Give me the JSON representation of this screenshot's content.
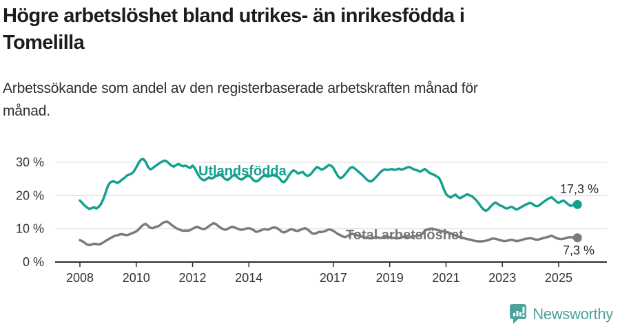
{
  "header": {
    "title_line1": "Högre arbetslöshet bland utrikes- än inrikesfödda i",
    "title_line2": "Tomelilla",
    "subtitle_line1": "Arbetssökande som andel av den registerbaserade arbetskraften månad för",
    "subtitle_line2": "månad."
  },
  "footer": {
    "brand": "Newsworthy",
    "logo_icon": "newsworthy-speech-bubble-barchart-icon"
  },
  "colors": {
    "foreign_born_line": "#14A090",
    "total_line": "#7b7b7b",
    "total_label": "#777777",
    "grid": "#dcdcdc",
    "axis": "#2b2b2b",
    "tick_text": "#333333",
    "value_text": "#2b2b2b",
    "brand_teal": "#4BA29E"
  },
  "chart_data": {
    "type": "line",
    "unit": "%",
    "x_start_year": 2008,
    "points_per_year": 12,
    "x_ticks": [
      2008,
      2010,
      2012,
      2014,
      2017,
      2019,
      2021,
      2023,
      2025
    ],
    "y_ticks": [
      {
        "value": 0,
        "label": "0 %"
      },
      {
        "value": 10,
        "label": "10 %"
      },
      {
        "value": 20,
        "label": "20 %"
      },
      {
        "value": 30,
        "label": "30 %"
      }
    ],
    "ylim": [
      0,
      33
    ],
    "grid": true,
    "legend_position": "inline",
    "series": [
      {
        "name": "Utlandsfödda",
        "inline_label": "Utlandsfödda",
        "end_label": "17,3 %",
        "end_value": 17.3,
        "color_key": "foreign_born_line",
        "values": [
          18.5,
          17.8,
          17.0,
          16.4,
          16.0,
          16.2,
          16.5,
          16.1,
          16.6,
          17.5,
          19.0,
          21.0,
          23.0,
          24.0,
          24.3,
          24.1,
          23.8,
          24.2,
          24.8,
          25.3,
          26.0,
          26.3,
          26.6,
          27.3,
          28.5,
          29.8,
          30.8,
          31.0,
          30.2,
          28.6,
          27.9,
          28.2,
          28.8,
          29.3,
          29.8,
          30.2,
          30.5,
          30.3,
          29.6,
          29.0,
          28.7,
          29.2,
          29.5,
          29.1,
          28.8,
          29.0,
          28.6,
          28.3,
          29.0,
          28.2,
          26.8,
          25.6,
          24.9,
          24.6,
          25.0,
          25.5,
          25.1,
          25.4,
          25.9,
          26.1,
          26.3,
          25.6,
          24.9,
          24.7,
          25.2,
          25.9,
          26.2,
          25.6,
          25.0,
          24.8,
          25.3,
          25.8,
          26.0,
          25.4,
          24.6,
          24.2,
          24.5,
          25.2,
          25.8,
          26.1,
          25.7,
          25.9,
          26.2,
          26.0,
          25.8,
          25.2,
          24.3,
          24.0,
          24.8,
          26.0,
          27.0,
          27.6,
          27.2,
          26.6,
          26.9,
          27.1,
          26.3,
          25.9,
          26.2,
          27.0,
          27.9,
          28.6,
          28.2,
          27.8,
          28.1,
          28.6,
          29.2,
          29.0,
          28.3,
          27.0,
          25.8,
          25.2,
          25.6,
          26.4,
          27.3,
          28.2,
          28.6,
          28.2,
          27.6,
          27.0,
          26.4,
          25.7,
          25.0,
          24.4,
          24.2,
          24.7,
          25.4,
          26.2,
          27.0,
          27.6,
          27.9,
          27.7,
          27.8,
          28.0,
          27.7,
          27.9,
          28.1,
          27.8,
          28.0,
          28.3,
          28.6,
          28.4,
          28.0,
          27.7,
          27.5,
          27.2,
          27.6,
          28.0,
          27.4,
          26.8,
          26.5,
          26.2,
          25.8,
          25.3,
          24.0,
          22.0,
          20.5,
          19.8,
          19.4,
          19.9,
          20.3,
          19.6,
          19.2,
          19.6,
          20.0,
          20.4,
          20.1,
          19.8,
          19.2,
          18.5,
          17.6,
          16.6,
          15.8,
          15.4,
          15.9,
          16.7,
          17.4,
          17.9,
          17.5,
          17.0,
          16.8,
          16.3,
          16.1,
          16.4,
          16.6,
          16.2,
          15.8,
          16.1,
          16.5,
          16.9,
          17.3,
          17.6,
          17.8,
          17.4,
          16.9,
          16.8,
          17.2,
          17.8,
          18.3,
          18.8,
          19.2,
          19.5,
          18.9,
          18.2,
          17.8,
          18.2,
          18.5,
          18.0,
          17.4,
          16.9,
          17.1,
          17.5,
          17.3
        ]
      },
      {
        "name": "Total arbetslöshet",
        "inline_label": "Total arbetslöshet",
        "end_label": "7,3 %",
        "end_value": 7.3,
        "color_key": "total_line",
        "values": [
          6.6,
          6.3,
          5.8,
          5.3,
          5.1,
          5.3,
          5.5,
          5.4,
          5.3,
          5.5,
          5.9,
          6.4,
          6.8,
          7.2,
          7.6,
          7.9,
          8.1,
          8.3,
          8.4,
          8.2,
          8.1,
          8.3,
          8.6,
          8.9,
          9.2,
          9.8,
          10.6,
          11.2,
          11.5,
          10.9,
          10.3,
          10.2,
          10.5,
          10.7,
          11.0,
          11.6,
          12.0,
          12.2,
          11.8,
          11.2,
          10.7,
          10.2,
          9.9,
          9.6,
          9.4,
          9.5,
          9.4,
          9.6,
          10.0,
          10.4,
          10.6,
          10.3,
          10.0,
          9.9,
          10.3,
          10.8,
          11.3,
          11.7,
          11.4,
          10.8,
          10.3,
          9.9,
          9.7,
          10.0,
          10.4,
          10.6,
          10.4,
          10.1,
          9.8,
          9.7,
          9.9,
          10.1,
          10.2,
          10.0,
          9.6,
          9.1,
          9.2,
          9.5,
          9.8,
          9.9,
          9.7,
          10.0,
          10.3,
          10.4,
          10.2,
          9.7,
          9.1,
          8.9,
          9.2,
          9.6,
          9.9,
          9.7,
          9.4,
          9.4,
          9.7,
          10.0,
          10.2,
          9.8,
          9.2,
          8.6,
          8.5,
          8.8,
          9.1,
          9.0,
          9.2,
          9.5,
          9.8,
          9.7,
          9.4,
          8.9,
          8.4,
          8.1,
          7.7,
          7.5,
          7.8,
          8.2,
          8.5,
          8.3,
          8.1,
          7.9,
          7.7,
          7.5,
          7.3,
          7.2,
          7.1,
          7.3,
          7.5,
          7.4,
          7.2,
          7.3,
          7.5,
          7.6,
          7.5,
          7.3,
          7.2,
          7.1,
          7.2,
          7.4,
          7.6,
          7.5,
          7.4,
          7.5,
          7.7,
          7.8,
          7.9,
          8.0,
          8.6,
          9.4,
          9.8,
          10.0,
          10.1,
          9.9,
          9.7,
          9.5,
          9.3,
          9.2,
          9.1,
          8.9,
          8.6,
          8.3,
          8.0,
          7.7,
          7.5,
          7.3,
          7.1,
          6.9,
          6.8,
          6.6,
          6.4,
          6.3,
          6.2,
          6.2,
          6.3,
          6.4,
          6.6,
          6.9,
          7.1,
          7.0,
          6.8,
          6.6,
          6.4,
          6.3,
          6.4,
          6.6,
          6.7,
          6.5,
          6.3,
          6.4,
          6.6,
          6.8,
          7.0,
          7.1,
          7.2,
          7.0,
          6.8,
          6.7,
          6.9,
          7.1,
          7.3,
          7.5,
          7.7,
          7.9,
          7.6,
          7.2,
          7.0,
          6.9,
          7.0,
          7.2,
          7.4,
          7.5,
          7.4,
          7.3,
          7.3
        ]
      }
    ]
  }
}
